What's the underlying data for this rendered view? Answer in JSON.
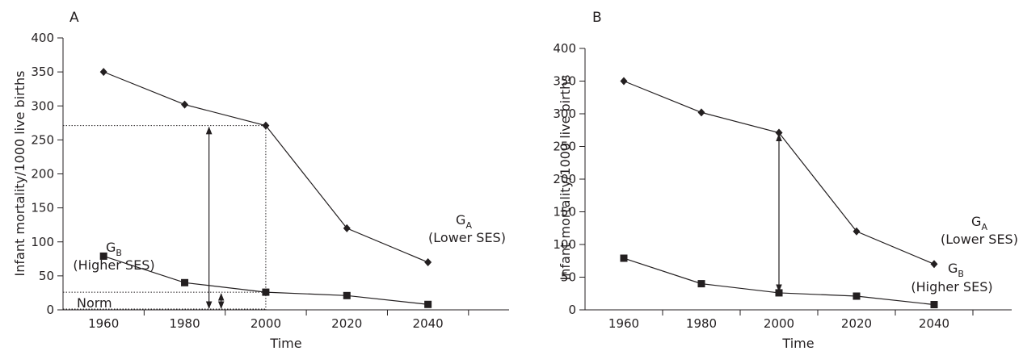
{
  "chart_data": [
    {
      "panel_label": "A",
      "type": "line",
      "x": [
        1960,
        1980,
        2000,
        2020,
        2040
      ],
      "xlabel": "Time",
      "ylabel": "Infant mortality/1000 live births",
      "xlim": [
        1950,
        2060
      ],
      "ylim": [
        0,
        400
      ],
      "yticks": [
        0,
        50,
        100,
        150,
        200,
        250,
        300,
        350,
        400
      ],
      "xticks": [
        1960,
        1980,
        2000,
        2020,
        2040
      ],
      "grid": false,
      "series": [
        {
          "name": "GA (Lower SES)",
          "values": [
            350,
            302,
            271,
            120,
            70
          ],
          "marker": "diamond"
        },
        {
          "name": "GB (Higher SES)",
          "values": [
            79,
            40,
            26,
            21,
            8
          ],
          "marker": "square"
        }
      ],
      "annotations": [
        {
          "type": "label",
          "text": "Norm",
          "y_range": [
            0,
            26
          ]
        },
        {
          "type": "dotted-reference",
          "x": 2000,
          "y_values": [
            271,
            26
          ]
        },
        {
          "type": "double-arrow",
          "x": 1986,
          "from": 0,
          "to": 271
        },
        {
          "type": "double-arrow",
          "x": 1989,
          "from": 0,
          "to": 26
        }
      ],
      "series_labels": {
        "ga_main": "G",
        "ga_sub": "A",
        "ga_desc": "(Lower SES)",
        "gb_main": "G",
        "gb_sub": "B",
        "gb_desc": "(Higher SES)"
      }
    },
    {
      "panel_label": "B",
      "type": "line",
      "x": [
        1960,
        1980,
        2000,
        2020,
        2040
      ],
      "xlabel": "Time",
      "ylabel": "Infant mortality/1000 live births",
      "xlim": [
        1950,
        2060
      ],
      "ylim": [
        0,
        400
      ],
      "yticks": [
        0,
        50,
        100,
        150,
        200,
        250,
        300,
        350,
        400
      ],
      "xticks": [
        1960,
        1980,
        2000,
        2020,
        2040
      ],
      "grid": false,
      "series": [
        {
          "name": "GA (Lower SES)",
          "values": [
            350,
            302,
            271,
            120,
            70
          ],
          "marker": "diamond"
        },
        {
          "name": "GB (Higher SES)",
          "values": [
            79,
            40,
            26,
            21,
            8
          ],
          "marker": "square"
        }
      ],
      "annotations": [
        {
          "type": "double-arrow",
          "x": 2000,
          "from": 26,
          "to": 271
        }
      ],
      "series_labels": {
        "ga_main": "G",
        "ga_sub": "A",
        "ga_desc": "(Lower SES)",
        "gb_main": "G",
        "gb_sub": "B",
        "gb_desc": "(Higher SES)"
      }
    }
  ],
  "colors": {
    "ink": "#231f20",
    "background": "#ffffff"
  }
}
